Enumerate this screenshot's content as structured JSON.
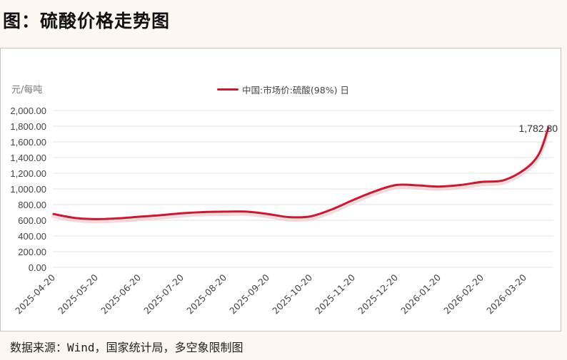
{
  "page": {
    "title": "图：硫酸价格走势图",
    "source": "数据来源：Wind，国家统计局，多空象限制图"
  },
  "chart": {
    "unit_label": "元/每吨",
    "legend_label": "中国:市场价:硫酸(98%) 日",
    "last_value_label": "1,782.80",
    "line_color": "#c21d33",
    "y_tick_labels": [
      "2,000.00",
      "1,800.00",
      "1,600.00",
      "1,400.00",
      "1,200.00",
      "1,000.00",
      "800.00",
      "600.00",
      "400.00",
      "200.00",
      "0.00"
    ],
    "x_tick_labels": [
      "2025-04-20",
      "2025-05-20",
      "2025-06-20",
      "2025-07-20",
      "2025-08-20",
      "2025-09-20",
      "2025-10-20",
      "2025-11-20",
      "2025-12-20",
      "2026-01-20",
      "2026-02-20",
      "2026-03-20"
    ]
  },
  "chart_data": {
    "type": "line",
    "title": "图：硫酸价格走势图",
    "xlabel": "",
    "ylabel": "元/每吨",
    "ylim": [
      0,
      2000
    ],
    "y_ticks": [
      0,
      200,
      400,
      600,
      800,
      1000,
      1200,
      1400,
      1600,
      1800,
      2000
    ],
    "grid": true,
    "legend_position": "top-center",
    "categories": [
      "2025-04-20",
      "2025-05-20",
      "2025-06-20",
      "2025-07-20",
      "2025-08-20",
      "2025-09-20",
      "2025-10-20",
      "2025-11-20",
      "2025-12-20",
      "2026-01-20",
      "2026-02-20",
      "2026-03-20"
    ],
    "series": [
      {
        "name": "中国:市场价:硫酸(98%) 日",
        "x": [
          "2025-04-20",
          "2025-05-05",
          "2025-05-20",
          "2025-06-05",
          "2025-06-20",
          "2025-07-05",
          "2025-07-20",
          "2025-08-05",
          "2025-08-20",
          "2025-09-05",
          "2025-09-20",
          "2025-10-05",
          "2025-10-20",
          "2025-11-05",
          "2025-11-20",
          "2025-12-05",
          "2025-12-20",
          "2026-01-05",
          "2026-01-20",
          "2026-02-05",
          "2026-02-20",
          "2026-03-05",
          "2026-03-20",
          "2026-03-30",
          "2026-04-05"
        ],
        "values": [
          680,
          630,
          615,
          625,
          645,
          665,
          690,
          705,
          710,
          710,
          680,
          640,
          650,
          740,
          860,
          970,
          1050,
          1045,
          1030,
          1050,
          1090,
          1110,
          1250,
          1450,
          1782.8
        ]
      }
    ],
    "annotations": [
      {
        "text": "1,782.80",
        "x": "2026-04-05",
        "y": 1782.8
      }
    ]
  }
}
